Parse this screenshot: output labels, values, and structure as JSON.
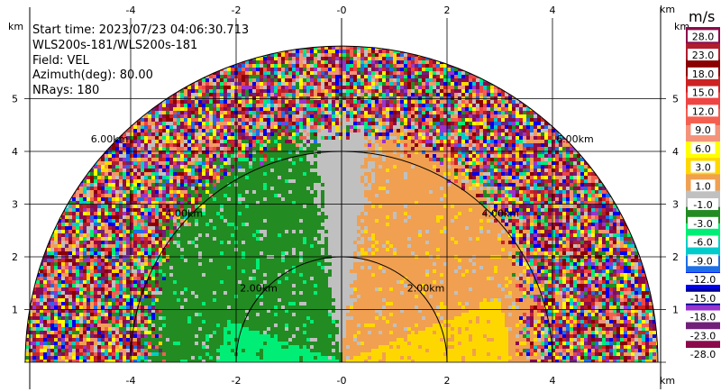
{
  "info": {
    "start_time": "Start time: 2023/07/23 04:06:30.713",
    "instrument": "WLS200s-181/WLS200s-181",
    "field": "Field: VEL",
    "azimuth": "Azimuth(deg): 80.00",
    "nrays": "NRays: 180"
  },
  "colorbar": {
    "unit": "m/s",
    "colors": [
      "#8b0a4b",
      "#b01e2e",
      "#8b0000",
      "#cc2222",
      "#ee4444",
      "#f46050",
      "#f3937a",
      "#ffff00",
      "#ffd700",
      "#f0a050",
      "#c0c0c0",
      "#228b22",
      "#00ee76",
      "#00cccc",
      "#1e6ee6",
      "#0000ee",
      "#000090",
      "#9933cc",
      "#70207a",
      "#8b0a4b"
    ],
    "labels": [
      "28.0",
      "23.0",
      "18.0",
      "15.0",
      "12.0",
      "9.0",
      "6.0",
      "3.0",
      "1.0",
      "-1.0",
      "-3.0",
      "-6.0",
      "-9.0",
      "-12.0",
      "-15.0",
      "-18.0",
      "-23.0",
      "-28.0"
    ]
  },
  "chart_data": {
    "type": "heatmap",
    "projection": "radar-rhi-semicircle",
    "xlabel_unit": "km",
    "ylabel_unit": "km",
    "xlim": [
      -5.9,
      6.1
    ],
    "ylim": [
      0,
      5.9
    ],
    "x_ticks": [
      -4,
      -2,
      0,
      2,
      4
    ],
    "x_tick_labels": [
      "-4",
      "-2",
      "-0",
      "2",
      "4"
    ],
    "y_ticks": [
      1,
      2,
      3,
      4,
      5
    ],
    "y_tick_labels": [
      "1",
      "2",
      "3",
      "4",
      "5"
    ],
    "max_range_km": 6.0,
    "range_rings": [
      {
        "radius": 2,
        "labels": [
          "2.00km",
          "2.00km"
        ]
      },
      {
        "radius": 4,
        "labels": [
          "4.00km",
          "4.00km"
        ]
      },
      {
        "radius": 6,
        "labels": [
          "6.00km",
          "6.00km"
        ]
      }
    ],
    "grid": true,
    "velocity_regions": [
      {
        "description_region": "left lower, near ground",
        "value": -6.0
      },
      {
        "description_region": "left, mid",
        "value": -3.0
      },
      {
        "description_region": "center, around vertical",
        "value": 0.0
      },
      {
        "description_region": "right, mid",
        "value": 1.0
      },
      {
        "description_region": "right lower, near ground",
        "value": 3.0
      },
      {
        "description_region": "outer ranges",
        "value": "noise"
      }
    ]
  }
}
